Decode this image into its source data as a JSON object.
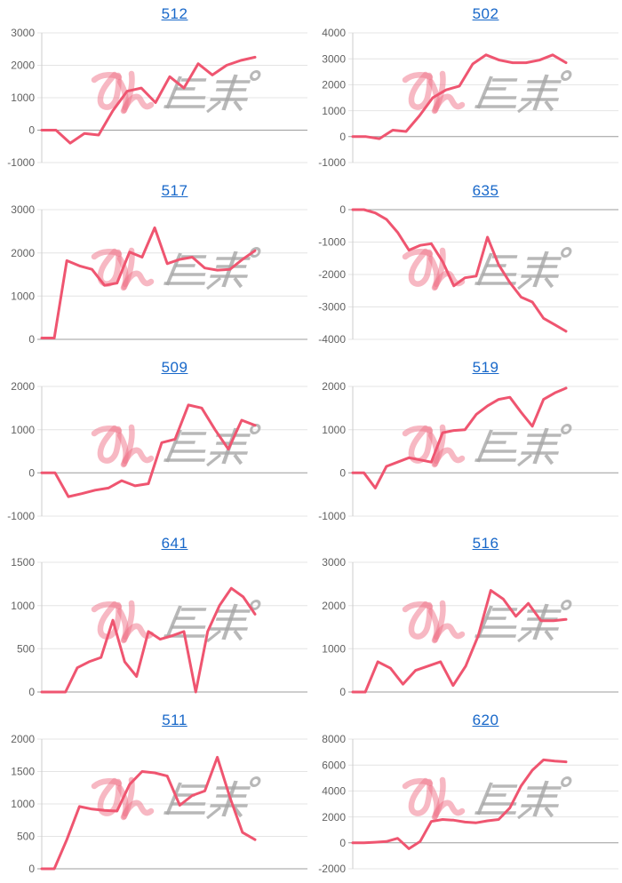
{
  "page": {
    "background": "#ffffff",
    "description": "Grid of 10 daily-balance line charts (pachinko machine slump graphs), 2 columns x 5 rows"
  },
  "style": {
    "line_color": "#ef5570",
    "grid_color": "#e4e4e4",
    "zero_line_color": "#9c9c9c",
    "axis_color": "#cccccc",
    "label_color": "#616161",
    "title_color": "#1767c9"
  },
  "watermark": {
    "text": "みんレポ",
    "pink_part": "みん",
    "gray_part": "レポ",
    "pink_color": "#ef7288",
    "gray_color": "#a6a6a6"
  },
  "chart_data": [
    {
      "type": "line",
      "title": "512",
      "ylim": [
        -1000,
        3000
      ],
      "ytick": 1000,
      "grid": true,
      "legend": "none",
      "values": [
        0,
        0,
        -400,
        -100,
        -150,
        600,
        1200,
        1300,
        850,
        1650,
        1300,
        2050,
        1700,
        2000,
        2150,
        2250
      ]
    },
    {
      "type": "line",
      "title": "502",
      "ylim": [
        -1000,
        4000
      ],
      "ytick": 1000,
      "grid": true,
      "legend": "none",
      "values": [
        0,
        0,
        -80,
        250,
        200,
        800,
        1500,
        1800,
        1950,
        2800,
        3150,
        2950,
        2850,
        2850,
        2950,
        3150,
        2850
      ]
    },
    {
      "type": "line",
      "title": "517",
      "ylim": [
        0,
        3000
      ],
      "ytick": 1000,
      "grid": true,
      "legend": "none",
      "values": [
        30,
        30,
        1820,
        1700,
        1620,
        1250,
        1300,
        2020,
        1900,
        2580,
        1750,
        1850,
        1900,
        1650,
        1600,
        1620,
        1850,
        2050
      ]
    },
    {
      "type": "line",
      "title": "635",
      "ylim": [
        -4000,
        0
      ],
      "ytick": 1000,
      "grid": true,
      "legend": "none",
      "values": [
        0,
        0,
        -100,
        -300,
        -700,
        -1250,
        -1100,
        -1050,
        -1600,
        -2350,
        -2100,
        -2050,
        -850,
        -1700,
        -2250,
        -2700,
        -2850,
        -3350,
        -3550,
        -3750
      ]
    },
    {
      "type": "line",
      "title": "509",
      "ylim": [
        -1000,
        2000
      ],
      "ytick": 1000,
      "grid": true,
      "legend": "none",
      "values": [
        0,
        0,
        -550,
        -480,
        -400,
        -350,
        -180,
        -300,
        -250,
        700,
        780,
        1570,
        1500,
        1000,
        550,
        1220,
        1100
      ]
    },
    {
      "type": "line",
      "title": "519",
      "ylim": [
        -1000,
        2000
      ],
      "ytick": 1000,
      "grid": true,
      "legend": "none",
      "values": [
        0,
        0,
        -350,
        150,
        250,
        350,
        300,
        250,
        930,
        980,
        1000,
        1350,
        1550,
        1700,
        1750,
        1400,
        1080,
        1700,
        1850,
        1960
      ]
    },
    {
      "type": "line",
      "title": "641",
      "ylim": [
        0,
        1500
      ],
      "ytick": 500,
      "grid": true,
      "legend": "none",
      "values": [
        0,
        0,
        0,
        280,
        350,
        400,
        830,
        350,
        180,
        700,
        610,
        650,
        700,
        0,
        700,
        1000,
        1200,
        1100,
        900
      ]
    },
    {
      "type": "line",
      "title": "516",
      "ylim": [
        0,
        3000
      ],
      "ytick": 1000,
      "grid": true,
      "legend": "none",
      "values": [
        0,
        0,
        700,
        550,
        180,
        500,
        600,
        700,
        150,
        600,
        1300,
        2350,
        2150,
        1750,
        2050,
        1650,
        1650,
        1680
      ]
    },
    {
      "type": "line",
      "title": "511",
      "ylim": [
        0,
        2000
      ],
      "ytick": 500,
      "grid": true,
      "legend": "none",
      "values": [
        0,
        0,
        450,
        960,
        920,
        900,
        890,
        1300,
        1500,
        1480,
        1430,
        980,
        1130,
        1200,
        1720,
        1100,
        560,
        450
      ]
    },
    {
      "type": "line",
      "title": "620",
      "ylim": [
        -2000,
        8000
      ],
      "ytick": 2000,
      "grid": true,
      "legend": "none",
      "values": [
        0,
        0,
        50,
        100,
        350,
        -450,
        100,
        1650,
        1800,
        1750,
        1600,
        1550,
        1700,
        1800,
        2700,
        4400,
        5600,
        6400,
        6300,
        6250
      ]
    }
  ]
}
